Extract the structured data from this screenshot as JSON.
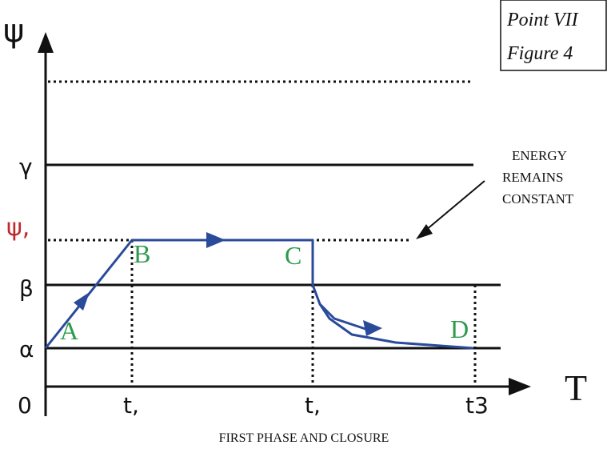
{
  "figure_box": {
    "line1": "Point VII",
    "line2": "Figure 4"
  },
  "axes": {
    "y_label": "ψ",
    "x_label": "T",
    "origin_label": "0"
  },
  "y_levels": {
    "gamma": "γ",
    "psi1": "ψ,",
    "beta": "β",
    "alpha": "α"
  },
  "x_ticks": {
    "t1": "t,",
    "t2": "t,",
    "t3": "t3"
  },
  "points": {
    "A": "A",
    "B": "B",
    "C": "C",
    "D": "D"
  },
  "annotation": {
    "line1": "ENERGY",
    "line2": "REMAINS",
    "line3": "CONSTANT"
  },
  "caption": "FIRST PHASE AND CLOSURE",
  "colors": {
    "path": "#2a4a9a",
    "point_labels": "#2e9a4e",
    "psi_level": "#c0282d",
    "lines": "#111111"
  }
}
